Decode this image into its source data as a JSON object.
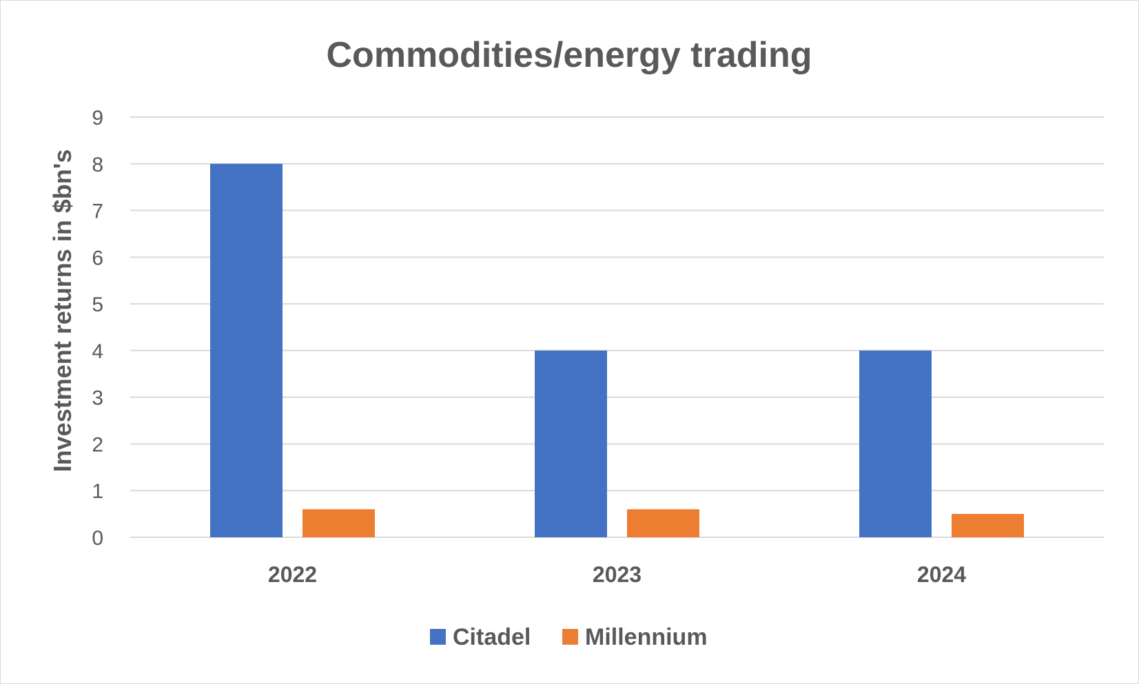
{
  "chart_data": {
    "type": "bar",
    "title": "Commodities/energy trading",
    "xlabel": "",
    "ylabel": "Investment returns in $bn's",
    "categories": [
      "2022",
      "2023",
      "2024"
    ],
    "series": [
      {
        "name": "Citadel",
        "values": [
          8,
          4,
          4
        ],
        "color": "#4472c4"
      },
      {
        "name": "Millennium",
        "values": [
          0.6,
          0.6,
          0.5
        ],
        "color": "#ed7d31"
      }
    ],
    "ylim": [
      0,
      9
    ],
    "yticks": [
      "0",
      "1",
      "2",
      "3",
      "4",
      "5",
      "6",
      "7",
      "8",
      "9"
    ],
    "grid": true,
    "gridColor": "#d9d9d9",
    "legend": "bottom"
  }
}
